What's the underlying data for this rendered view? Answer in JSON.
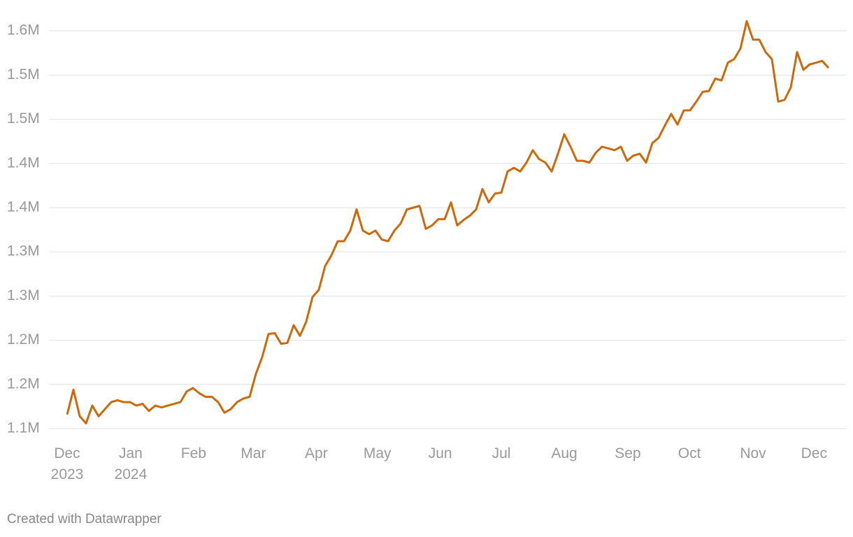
{
  "chart_data": {
    "type": "line",
    "source": "Created with Datawrapper",
    "series": [
      {
        "color": "#c96a0c",
        "values": [
          1116000,
          1144000,
          1114000,
          1106000,
          1126000,
          1114000,
          1122000,
          1130000,
          1132000,
          1130000,
          1130000,
          1126000,
          1128000,
          1120000,
          1126000,
          1124000,
          1126000,
          1128000,
          1130000,
          1142000,
          1146000,
          1140000,
          1136000,
          1136000,
          1130000,
          1118000,
          1122000,
          1130000,
          1134000,
          1136000,
          1162000,
          1181000,
          1207000,
          1208000,
          1196000,
          1197000,
          1217000,
          1205000,
          1221000,
          1249000,
          1257000,
          1284000,
          1296000,
          1312000,
          1312000,
          1324000,
          1348000,
          1324000,
          1320000,
          1324000,
          1314000,
          1312000,
          1324000,
          1332000,
          1348000,
          1350000,
          1352000,
          1326000,
          1330000,
          1337000,
          1337000,
          1356000,
          1330000,
          1336000,
          1341000,
          1348000,
          1371000,
          1356000,
          1366000,
          1367000,
          1391000,
          1395000,
          1391000,
          1401000,
          1415000,
          1405000,
          1401000,
          1391000,
          1411000,
          1433000,
          1419000,
          1403000,
          1403000,
          1401000,
          1412000,
          1419000,
          1417000,
          1415000,
          1419000,
          1403000,
          1409000,
          1411000,
          1401000,
          1423000,
          1429000,
          1443000,
          1456000,
          1444000,
          1460000,
          1460000,
          1470000,
          1481000,
          1482000,
          1496000,
          1494000,
          1514000,
          1518000,
          1530000,
          1561000,
          1540000,
          1540000,
          1526000,
          1518000,
          1470000,
          1472000,
          1486000,
          1526000,
          1506000,
          1512000,
          1514000,
          1516000,
          1508000
        ]
      }
    ],
    "xticks": [
      {
        "value": 0,
        "label": "Dec\n2023"
      },
      {
        "value": 10.1,
        "label": "Jan\n2024"
      },
      {
        "value": 20.1,
        "label": "Feb"
      },
      {
        "value": 29.6,
        "label": "Mar"
      },
      {
        "value": 39.6,
        "label": "Apr"
      },
      {
        "value": 49.3,
        "label": "May"
      },
      {
        "value": 59.3,
        "label": "Jun"
      },
      {
        "value": 69,
        "label": "Jul"
      },
      {
        "value": 79,
        "label": "Aug"
      },
      {
        "value": 89.1,
        "label": "Sep"
      },
      {
        "value": 98.9,
        "label": "Oct"
      },
      {
        "value": 109,
        "label": "Nov"
      },
      {
        "value": 118.7,
        "label": "Dec"
      }
    ],
    "ylim": [
      1090000,
      1570000
    ],
    "yticks": [
      {
        "value": 1100000,
        "label": "1.1M"
      },
      {
        "value": 1150000,
        "label": "1.2M"
      },
      {
        "value": 1200000,
        "label": "1.2M"
      },
      {
        "value": 1250000,
        "label": "1.3M"
      },
      {
        "value": 1300000,
        "label": "1.3M"
      },
      {
        "value": 1350000,
        "label": "1.4M"
      },
      {
        "value": 1400000,
        "label": "1.4M"
      },
      {
        "value": 1450000,
        "label": "1.5M"
      },
      {
        "value": 1500000,
        "label": "1.5M"
      },
      {
        "value": 1550000,
        "label": "1.6M"
      }
    ],
    "grid": true
  }
}
